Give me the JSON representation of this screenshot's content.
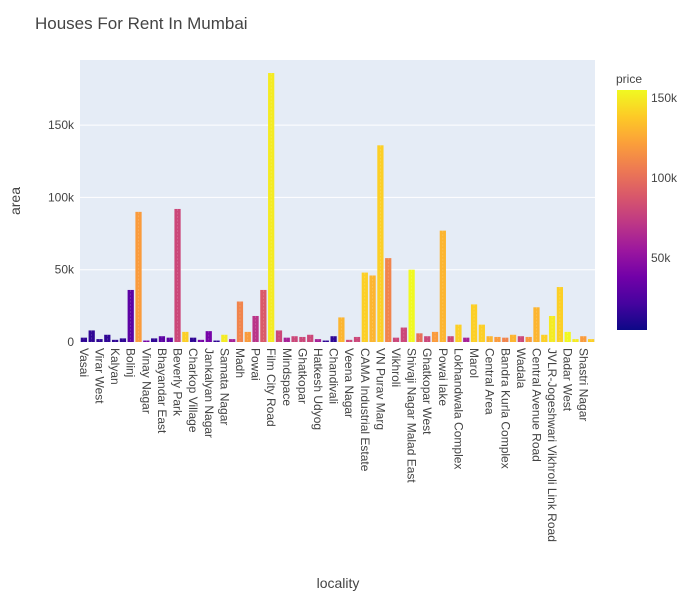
{
  "chart_data": {
    "type": "bar",
    "title": "Houses For Rent In Mumbai",
    "xlabel": "locality",
    "ylabel": "area",
    "ylim": [
      0,
      195000
    ],
    "y_ticks": [
      0,
      50000,
      100000,
      150000
    ],
    "y_tick_labels": [
      "0",
      "50k",
      "100k",
      "150k"
    ],
    "grid": true,
    "color_axis": {
      "title": "price",
      "range": [
        5000,
        155000
      ],
      "ticks": [
        50000,
        100000,
        150000
      ],
      "tick_labels": [
        "50k",
        "100k",
        "150k"
      ],
      "colorscale": [
        "#0d0887",
        "#46039f",
        "#7201a8",
        "#9c179e",
        "#bd3786",
        "#d8576b",
        "#ed7953",
        "#fb9f3a",
        "#fdca26",
        "#f0f921"
      ]
    },
    "categories": [
      "Vasai",
      "",
      "Virar West",
      "",
      "Kalyan",
      "",
      "Bolinj",
      "",
      "Vinay Nagar",
      "",
      "Bhayandar East",
      "",
      "Beverly Park",
      "",
      "Charkop Village",
      "",
      "Jankalyan Nagar",
      "",
      "Samata Nagar",
      "",
      "Madh",
      "",
      "Powai",
      "",
      "Film City Road",
      "",
      "Mindspace",
      "",
      "Ghatkopar",
      "",
      "Hatkesh Udyog",
      "",
      "Chandivali",
      "",
      "Veena Nagar",
      "",
      "CAMA Industrial Estate",
      "",
      "VN Purav Marg",
      "",
      "Vikhroli",
      "",
      "Shivaji Nagar Malad East",
      "",
      "Ghatkopar West",
      "",
      "Powai lake",
      "",
      "Lokhandwala Complex",
      "",
      "Marol",
      "",
      "Central Area",
      "",
      "Bandra Kurla Complex",
      "",
      "Wadala",
      "",
      "Central Avenue Road",
      "",
      "JVLR-Jogeshwari Vikhroli Link Road",
      "",
      "Dadar West",
      "",
      "Shastri Nagar",
      ""
    ],
    "values": [
      3000,
      8000,
      2000,
      5000,
      1500,
      2500,
      36000,
      90000,
      1000,
      2500,
      4000,
      3000,
      92000,
      7000,
      3000,
      1500,
      7500,
      1000,
      5000,
      2000,
      28000,
      7000,
      18000,
      36000,
      186000,
      8000,
      3000,
      4000,
      3500,
      5000,
      2000,
      1000,
      4000,
      17000,
      1500,
      3500,
      48000,
      46000,
      136000,
      58000,
      3000,
      10000,
      50000,
      6000,
      4000,
      7000,
      77000,
      4000,
      12000,
      3000,
      26000,
      12000,
      4000,
      3500,
      3000,
      5000,
      4000,
      3500,
      24000,
      5000,
      18000,
      38000,
      7000,
      2000,
      4000,
      2000
    ],
    "bar_price": [
      15000,
      15000,
      15000,
      15000,
      15000,
      15000,
      30000,
      120000,
      40000,
      15000,
      30000,
      30000,
      80000,
      140000,
      15000,
      40000,
      40000,
      15000,
      150000,
      60000,
      110000,
      120000,
      70000,
      90000,
      150000,
      80000,
      60000,
      80000,
      80000,
      80000,
      60000,
      15000,
      15000,
      130000,
      80000,
      80000,
      140000,
      130000,
      140000,
      110000,
      80000,
      80000,
      155000,
      100000,
      80000,
      120000,
      130000,
      80000,
      140000,
      60000,
      140000,
      140000,
      130000,
      120000,
      110000,
      130000,
      80000,
      120000,
      130000,
      140000,
      150000,
      140000,
      155000,
      150000,
      120000,
      140000
    ]
  }
}
